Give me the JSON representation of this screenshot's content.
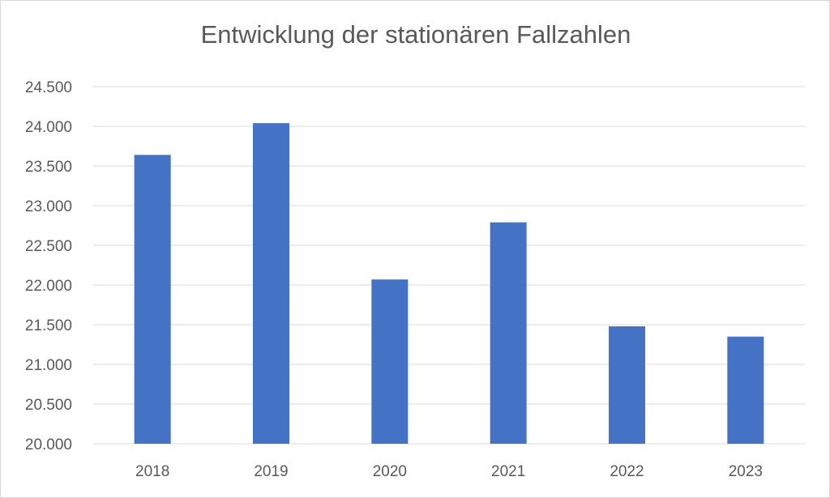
{
  "chart_data": {
    "type": "bar",
    "title": "Entwicklung der stationären Fallzahlen",
    "xlabel": "",
    "ylabel": "",
    "categories": [
      "2018",
      "2019",
      "2020",
      "2021",
      "2022",
      "2023"
    ],
    "values": [
      23640,
      24040,
      22070,
      22790,
      21480,
      21350
    ],
    "ylim": [
      20000,
      24500
    ],
    "y_ticks": [
      20000,
      20500,
      21000,
      21500,
      22000,
      22500,
      23000,
      23500,
      24000,
      24500
    ],
    "y_tick_labels": [
      "20.000",
      "20.500",
      "21.000",
      "21.500",
      "22.000",
      "22.500",
      "23.000",
      "23.500",
      "24.000",
      "24.500"
    ],
    "grid": true,
    "legend": "none",
    "bar_color": "#4472c4",
    "grid_color": "#d9d9d9"
  }
}
